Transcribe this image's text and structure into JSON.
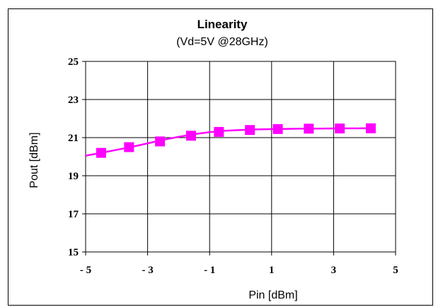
{
  "chart_data": {
    "type": "line",
    "title": "Linearity",
    "subtitle": "(Vd=5V @28GHz)",
    "xlabel": "Pin [dBm]",
    "ylabel": "Pout [dBm]",
    "xlim": [
      -5,
      5
    ],
    "ylim": [
      15,
      25
    ],
    "x_ticks": [
      -5,
      -3,
      -1,
      1,
      3,
      5
    ],
    "x_tick_labels": [
      "- 5",
      "- 3",
      "- 1",
      "1",
      "3",
      "5"
    ],
    "y_ticks": [
      15,
      17,
      19,
      21,
      23,
      25
    ],
    "y_tick_labels": [
      "15",
      "17",
      "19",
      "21",
      "23",
      "25"
    ],
    "x_grid": [
      -5,
      -3,
      -1,
      1,
      3,
      5
    ],
    "y_grid": [
      15,
      17,
      19,
      21,
      23,
      25
    ],
    "grid": true,
    "series": [
      {
        "color": "#ff00ff",
        "marker": "square",
        "x": [
          -4.5,
          -3.6,
          -2.6,
          -1.6,
          -0.7,
          0.3,
          1.2,
          2.2,
          3.2,
          4.2
        ],
        "y": [
          20.2,
          20.5,
          20.8,
          21.1,
          21.3,
          21.4,
          21.45,
          21.47,
          21.48,
          21.49
        ]
      }
    ],
    "curve": {
      "x": [
        -5.0,
        -4.5,
        -4.0,
        -3.5,
        -3.0,
        -2.5,
        -2.0,
        -1.5,
        -1.0,
        -0.5,
        0.0,
        0.5,
        1.0,
        1.5,
        2.0,
        2.5,
        3.0,
        3.5,
        4.0,
        4.2
      ],
      "y": [
        20.05,
        20.2,
        20.36,
        20.52,
        20.7,
        20.88,
        21.04,
        21.18,
        21.29,
        21.36,
        21.4,
        21.43,
        21.45,
        21.46,
        21.47,
        21.475,
        21.48,
        21.485,
        21.49,
        21.49
      ]
    }
  }
}
